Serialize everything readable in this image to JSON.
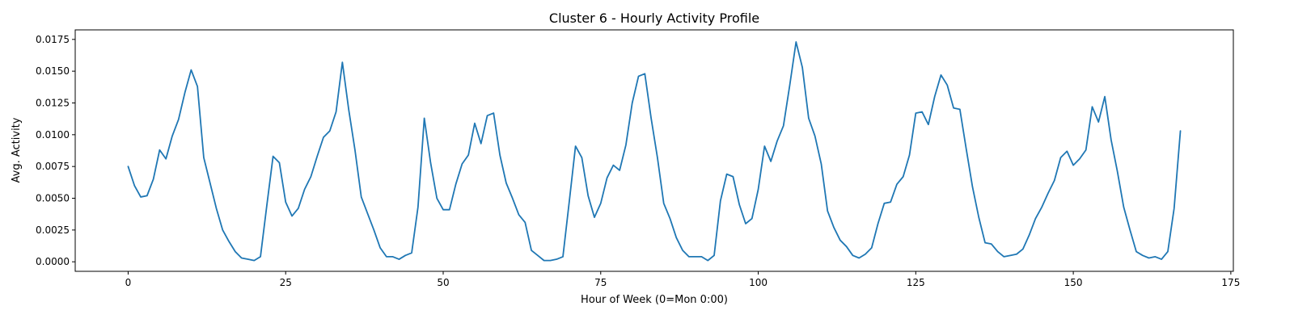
{
  "chart_data": {
    "type": "line",
    "title": "Cluster 6 - Hourly Activity Profile",
    "xlabel": "Hour of Week (0=Mon 0:00)",
    "ylabel": "Avg. Activity",
    "xlim": [
      -8.4,
      175.4
    ],
    "ylim": [
      -0.00075,
      0.01825
    ],
    "xticks": [
      0,
      25,
      50,
      75,
      100,
      125,
      150,
      175
    ],
    "xtick_labels": [
      "0",
      "25",
      "50",
      "75",
      "100",
      "125",
      "150",
      "175"
    ],
    "yticks": [
      0.0,
      0.0025,
      0.005,
      0.0075,
      0.01,
      0.0125,
      0.015,
      0.0175
    ],
    "ytick_labels": [
      "0.0000",
      "0.0025",
      "0.0050",
      "0.0075",
      "0.0100",
      "0.0125",
      "0.0150",
      "0.0175"
    ],
    "grid": false,
    "color": "#1f77b4",
    "series": [
      {
        "x": [
          0,
          1,
          2,
          3,
          4,
          5,
          6,
          7,
          8,
          9,
          10,
          11,
          12,
          13,
          14,
          15,
          16,
          17,
          18,
          19,
          20,
          21,
          22,
          23,
          24,
          25,
          26,
          27,
          28,
          29,
          30,
          31,
          32,
          33,
          34,
          35,
          36,
          37,
          38,
          39,
          40,
          41,
          42,
          43,
          44,
          45,
          46,
          47,
          48,
          49,
          50,
          51,
          52,
          53,
          54,
          55,
          56,
          57,
          58,
          59,
          60,
          61,
          62,
          63,
          64,
          65,
          66,
          67,
          68,
          69,
          70,
          71,
          72,
          73,
          74,
          75,
          76,
          77,
          78,
          79,
          80,
          81,
          82,
          83,
          84,
          85,
          86,
          87,
          88,
          89,
          90,
          91,
          92,
          93,
          94,
          95,
          96,
          97,
          98,
          99,
          100,
          101,
          102,
          103,
          104,
          105,
          106,
          107,
          108,
          109,
          110,
          111,
          112,
          113,
          114,
          115,
          116,
          117,
          118,
          119,
          120,
          121,
          122,
          123,
          124,
          125,
          126,
          127,
          128,
          129,
          130,
          131,
          132,
          133,
          134,
          135,
          136,
          137,
          138,
          139,
          140,
          141,
          142,
          143,
          144,
          145,
          146,
          147,
          148,
          149,
          150,
          151,
          152,
          153,
          154,
          155,
          156,
          157,
          158,
          159,
          160,
          161,
          162,
          163,
          164,
          165,
          166,
          167
        ],
        "values": [
          0.0075,
          0.006,
          0.0051,
          0.0052,
          0.0065,
          0.0088,
          0.0081,
          0.0099,
          0.0112,
          0.0133,
          0.0151,
          0.0138,
          0.0082,
          0.0062,
          0.0042,
          0.0025,
          0.0016,
          0.0008,
          0.0003,
          0.0002,
          0.0001,
          0.0004,
          0.0044,
          0.0083,
          0.0078,
          0.0047,
          0.0036,
          0.0042,
          0.0057,
          0.0067,
          0.0083,
          0.0098,
          0.0103,
          0.0118,
          0.0157,
          0.012,
          0.0088,
          0.0051,
          0.0038,
          0.0025,
          0.0011,
          0.0004,
          0.0004,
          0.0002,
          0.0005,
          0.0007,
          0.0043,
          0.0113,
          0.0078,
          0.005,
          0.0041,
          0.0041,
          0.0061,
          0.0077,
          0.0084,
          0.0109,
          0.0093,
          0.0115,
          0.0117,
          0.0084,
          0.0062,
          0.005,
          0.0037,
          0.0031,
          0.0009,
          0.0005,
          0.0001,
          0.0001,
          0.0002,
          0.0004,
          0.0047,
          0.0091,
          0.0082,
          0.0052,
          0.0035,
          0.0046,
          0.0066,
          0.0076,
          0.0072,
          0.0092,
          0.0125,
          0.0146,
          0.0148,
          0.0113,
          0.0082,
          0.0046,
          0.0034,
          0.0019,
          0.0009,
          0.0004,
          0.0004,
          0.0004,
          0.0001,
          0.0005,
          0.0048,
          0.0069,
          0.0067,
          0.0045,
          0.003,
          0.0034,
          0.0057,
          0.0091,
          0.0079,
          0.0095,
          0.0107,
          0.0139,
          0.0173,
          0.0153,
          0.0113,
          0.0099,
          0.0077,
          0.004,
          0.0027,
          0.0017,
          0.0012,
          0.0005,
          0.0003,
          0.0006,
          0.0011,
          0.003,
          0.0046,
          0.0047,
          0.0061,
          0.0067,
          0.0084,
          0.0117,
          0.0118,
          0.0108,
          0.013,
          0.0147,
          0.0139,
          0.0121,
          0.012,
          0.0089,
          0.0059,
          0.0035,
          0.0015,
          0.0014,
          0.0008,
          0.0004,
          0.0005,
          0.0006,
          0.001,
          0.0021,
          0.0034,
          0.0043,
          0.0054,
          0.0064,
          0.0082,
          0.0087,
          0.0076,
          0.0081,
          0.0088,
          0.0122,
          0.011,
          0.013,
          0.0096,
          0.0071,
          0.0043,
          0.0025,
          0.0008,
          0.0005,
          0.0003,
          0.0004,
          0.0002,
          0.0008,
          0.0042,
          0.0103
        ]
      }
    ]
  }
}
